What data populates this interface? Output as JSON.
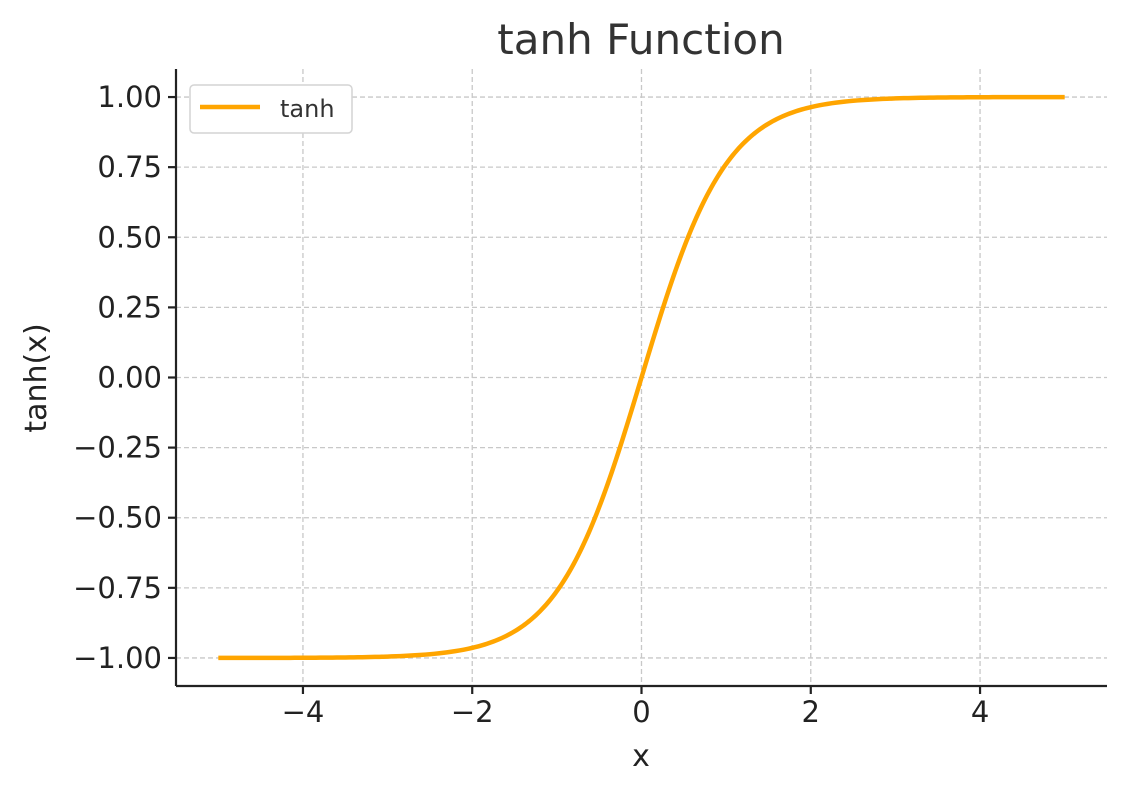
{
  "chart_data": {
    "type": "line",
    "title": "tanh Function",
    "xlabel": "x",
    "ylabel": "tanh(x)",
    "xlim": [
      -5.5,
      5.5
    ],
    "ylim": [
      -1.1,
      1.1
    ],
    "xticks": [
      -4,
      -2,
      0,
      2,
      4
    ],
    "xtick_labels": [
      "−4",
      "−2",
      "0",
      "2",
      "4"
    ],
    "yticks": [
      -1.0,
      -0.75,
      -0.5,
      -0.25,
      0.0,
      0.25,
      0.5,
      0.75,
      1.0
    ],
    "ytick_labels": [
      "−1.00",
      "−0.75",
      "−0.50",
      "−0.25",
      "0.00",
      "0.25",
      "0.50",
      "0.75",
      "1.00"
    ],
    "grid": true,
    "legend_position": "top-left",
    "series": [
      {
        "name": "tanh",
        "color": "#FFA500",
        "x": [
          -5.0,
          -4.5,
          -4.0,
          -3.5,
          -3.0,
          -2.5,
          -2.0,
          -1.75,
          -1.5,
          -1.25,
          -1.0,
          -0.75,
          -0.5,
          -0.25,
          0.0,
          0.25,
          0.5,
          0.75,
          1.0,
          1.25,
          1.5,
          1.75,
          2.0,
          2.5,
          3.0,
          3.5,
          4.0,
          4.5,
          5.0
        ],
        "y": [
          -0.9999,
          -0.9998,
          -0.9993,
          -0.9982,
          -0.9951,
          -0.9866,
          -0.964,
          -0.9414,
          -0.9051,
          -0.8483,
          -0.7616,
          -0.6351,
          -0.4621,
          -0.2449,
          0.0,
          0.2449,
          0.4621,
          0.6351,
          0.7616,
          0.8483,
          0.9051,
          0.9414,
          0.964,
          0.9866,
          0.9951,
          0.9982,
          0.9993,
          0.9998,
          0.9999
        ]
      }
    ]
  }
}
